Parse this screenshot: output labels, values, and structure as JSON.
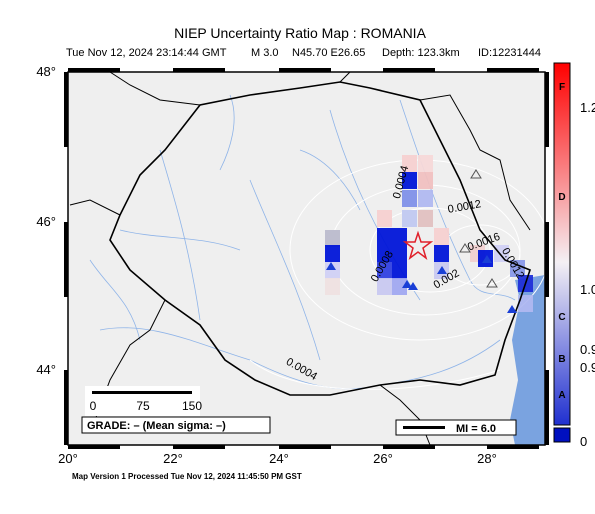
{
  "header": {
    "title": "NIEP Uncertainty Ratio Map : ROMANIA",
    "datetime": "Tue Nov 12, 2024 23:14:44 GMT",
    "magnitude": "M 3.0",
    "location": "N45.70 E26.65",
    "depth": "Depth: 123.3km",
    "id": "ID:12231444"
  },
  "map": {
    "lat_labels": [
      "48°",
      "46°",
      "44°"
    ],
    "lon_labels": [
      "20°",
      "22°",
      "24°",
      "26°",
      "28°"
    ],
    "contour_labels": [
      "0.0004",
      "0.0012",
      "0.0008",
      "0.002",
      "0.0016",
      "0.0012",
      "0.0004"
    ],
    "scale_labels": [
      "0",
      "75",
      "150"
    ],
    "grade": "GRADE: – (Mean sigma: –)",
    "mi_legend": "MI = 6.0"
  },
  "colorbar": {
    "grades": [
      "F",
      "D",
      "C",
      "B",
      "A"
    ],
    "labels": [
      "1.2",
      "1.0",
      "0.9",
      "0.9",
      "0"
    ]
  },
  "footer": "Map Version 1 Processed Tue Nov 12, 2024 11:45:50 PM GST"
}
